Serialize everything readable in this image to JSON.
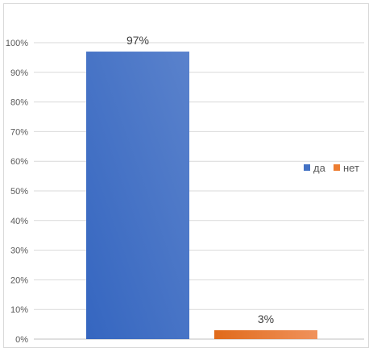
{
  "chart_data": {
    "type": "bar",
    "categories": [
      "да",
      "нет"
    ],
    "values": [
      97,
      3
    ],
    "data_labels": [
      "97%",
      "3%"
    ],
    "title": "",
    "xlabel": "",
    "ylabel": "",
    "ylim": [
      0,
      100
    ],
    "y_ticks": [
      "0%",
      "10%",
      "20%",
      "30%",
      "40%",
      "50%",
      "60%",
      "70%",
      "80%",
      "90%",
      "100%"
    ],
    "grid": true,
    "legend": {
      "position": "right",
      "entries": [
        {
          "label": "да",
          "color": "#4472C4"
        },
        {
          "label": "нет",
          "color": "#ED7D31"
        }
      ]
    },
    "colors": {
      "bar_1": "#4472C4",
      "bar_2": "#ED7D31",
      "gridline": "#d9d9d9",
      "axis": "#bfbfbf"
    }
  }
}
